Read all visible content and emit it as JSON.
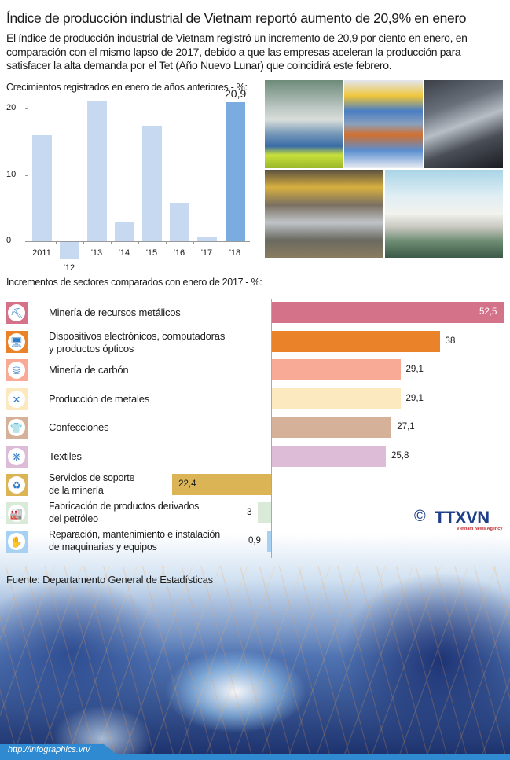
{
  "header": {
    "title": "Índice de producción industrial de Vietnam reportó aumento de 20,9% en enero",
    "lead": "El índice de producción industrial de Vietnam registró un incremento de 20,9 por ciento en enero, en comparación con el mismo lapso de 2017, debido a que las empresas aceleran la producción para satisfacer la alta demanda por el Tet (Año Nuevo Lunar) que coincidirá este febrero."
  },
  "column_chart": {
    "title": "Crecimientos registrados en enero de años anteriores - %:",
    "y_ticks": [
      "20",
      "10",
      "0"
    ],
    "highlight_label": "20,9",
    "x_labels": [
      "2011",
      "'12",
      "'13",
      "'14",
      "'15",
      "'16",
      "'17",
      "'18"
    ]
  },
  "photos": [
    {
      "name": "factory-assembly-line-photo"
    },
    {
      "name": "production-machinery-photo"
    },
    {
      "name": "steel-pipes-photo"
    },
    {
      "name": "car-assembly-photo"
    },
    {
      "name": "textile-machines-photo"
    }
  ],
  "sector_chart": {
    "title": "Incrementos de sectores comparados con enero de 2017 - %:",
    "items": [
      {
        "label": "Minería de recursos metálicos",
        "value": "52,5",
        "icon": "mining-shovel-icon",
        "color": "#d4728a",
        "glyph": "⛏"
      },
      {
        "label": "Dispositivos electrónicos, computadoras\ny productos ópticos",
        "value": "38",
        "icon": "computer-icon",
        "color": "#e98229",
        "glyph": "🖥"
      },
      {
        "label": "Minería de carbón",
        "value": "29,1",
        "icon": "coal-cart-icon",
        "color": "#f9aa96",
        "glyph": "⛁"
      },
      {
        "label": "Producción de metales",
        "value": "29,1",
        "icon": "tools-icon",
        "color": "#fde9bf",
        "glyph": "✕"
      },
      {
        "label": "Confecciones",
        "value": "27,1",
        "icon": "shirt-icon",
        "color": "#d6b19a",
        "glyph": "👕"
      },
      {
        "label": "Textiles",
        "value": "25,8",
        "icon": "fabric-icon",
        "color": "#dcbcd6",
        "glyph": "❋"
      },
      {
        "label": "Servicios de soporte\nde la minería",
        "value": "22,4",
        "icon": "recycle-icon",
        "color": "#dab455",
        "glyph": "♻"
      },
      {
        "label": "Fabricación de productos derivados\ndel petróleo",
        "value": "3",
        "icon": "refinery-icon",
        "color": "#d9ebd8",
        "glyph": "🏭"
      },
      {
        "label": "Reparación, mantenimiento e instalación\nde maquinarias y equipos",
        "value": "0,9",
        "icon": "repair-hand-icon",
        "color": "#a6d1f2",
        "glyph": "✋"
      }
    ]
  },
  "logo": {
    "copyright": "©",
    "name": "TTXVN",
    "subtitle": "Vietnam News Agency"
  },
  "source": "Fuente: Departamento General de Estadísticas",
  "footer": {
    "url": "http://infographics.vn/"
  },
  "colors": {
    "column_bar": "#c6d9f1",
    "column_highlight": "#7aace0",
    "footer_blue": "#2f8ad2",
    "icon_blue": "#2d7cc7"
  },
  "chart_data": [
    {
      "type": "bar",
      "title": "Crecimientos registrados en enero de años anteriores - %:",
      "categories": [
        "2011",
        "2012",
        "2013",
        "2014",
        "2015",
        "2016",
        "2017",
        "2018"
      ],
      "values": [
        16.0,
        -2.6,
        21.1,
        2.8,
        17.4,
        5.8,
        0.6,
        20.9
      ],
      "labeled_values": {
        "2018": 20.9
      },
      "xlabel": "",
      "ylabel": "%",
      "ylim": [
        -3,
        22
      ],
      "y_ticks": [
        0,
        10,
        20
      ],
      "grid": false,
      "highlight": "2018"
    },
    {
      "type": "bar",
      "orientation": "horizontal",
      "title": "Incrementos de sectores comparados con enero de 2017 - %:",
      "categories": [
        "Minería de recursos metálicos",
        "Dispositivos electrónicos, computadoras y productos ópticos",
        "Minería de carbón",
        "Producción de metales",
        "Confecciones",
        "Textiles",
        "Servicios de soporte de la minería",
        "Fabricación de productos derivados del petróleo",
        "Reparación, mantenimiento e instalación de maquinarias y equipos"
      ],
      "values": [
        52.5,
        38,
        29.1,
        29.1,
        27.1,
        25.8,
        22.4,
        3,
        0.9
      ],
      "colors": [
        "#d4728a",
        "#e98229",
        "#f9aa96",
        "#fde9bf",
        "#d6b19a",
        "#dcbcd6",
        "#dab455",
        "#d9ebd8",
        "#a6d1f2"
      ],
      "grid": false
    }
  ]
}
